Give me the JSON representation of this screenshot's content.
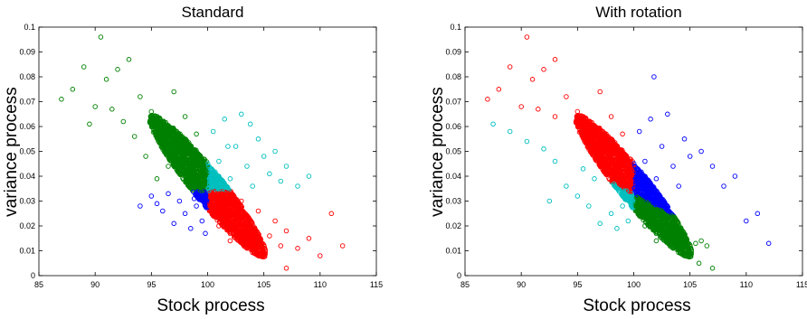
{
  "colors": {
    "green": "#008000",
    "cyan": "#00bfbf",
    "blue": "#0000ff",
    "red": "#ff0000"
  },
  "chart_data": [
    {
      "type": "scatter",
      "title": "Standard",
      "xlabel": "Stock process",
      "ylabel": "variance process",
      "xlim": [
        85,
        115
      ],
      "ylim": [
        0,
        0.1
      ],
      "xticks": [
        "85",
        "90",
        "95",
        "100",
        "105",
        "110",
        "115"
      ],
      "yticks": [
        "0",
        "0.01",
        "0.02",
        "0.03",
        "0.04",
        "0.05",
        "0.06",
        "0.07",
        "0.08",
        "0.09",
        "0.1"
      ],
      "marker": "open-circle",
      "grid": false,
      "partition": "quadrants split at S=100 and v=0.034",
      "series": [
        {
          "color": "#008000",
          "region": "S<100, v>0.034",
          "points": [
            [
              87,
              0.071
            ],
            [
              88,
              0.075
            ],
            [
              89,
              0.084
            ],
            [
              90.5,
              0.096
            ],
            [
              90,
              0.068
            ],
            [
              91,
              0.079
            ],
            [
              92,
              0.083
            ],
            [
              92.5,
              0.062
            ],
            [
              93,
              0.087
            ],
            [
              93.5,
              0.056
            ],
            [
              94,
              0.072
            ],
            [
              94.5,
              0.048
            ],
            [
              95,
              0.066
            ],
            [
              95.5,
              0.039
            ],
            [
              96,
              0.058
            ],
            [
              96.5,
              0.044
            ],
            [
              97,
              0.074
            ],
            [
              97.5,
              0.052
            ],
            [
              98,
              0.064
            ],
            [
              98.5,
              0.041
            ],
            [
              99,
              0.057
            ],
            [
              99.5,
              0.047
            ],
            [
              89.5,
              0.061
            ],
            [
              91.5,
              0.067
            ]
          ]
        },
        {
          "color": "#00bfbf",
          "region": "S>100, v>0.034",
          "points": [
            [
              100.5,
              0.058
            ],
            [
              101,
              0.046
            ],
            [
              101.5,
              0.063
            ],
            [
              102,
              0.039
            ],
            [
              102.5,
              0.052
            ],
            [
              103,
              0.065
            ],
            [
              103.5,
              0.044
            ],
            [
              104,
              0.036
            ],
            [
              104.5,
              0.055
            ],
            [
              105,
              0.048
            ],
            [
              105.5,
              0.041
            ],
            [
              106,
              0.05
            ],
            [
              106.5,
              0.038
            ],
            [
              107,
              0.044
            ],
            [
              108,
              0.036
            ],
            [
              109,
              0.04
            ],
            [
              103.8,
              0.061
            ],
            [
              101.8,
              0.052
            ]
          ]
        },
        {
          "color": "#0000ff",
          "region": "S<100, v<0.034",
          "points": [
            [
              94,
              0.028
            ],
            [
              95,
              0.032
            ],
            [
              96,
              0.026
            ],
            [
              97,
              0.021
            ],
            [
              97.5,
              0.03
            ],
            [
              98,
              0.025
            ],
            [
              98.5,
              0.019
            ],
            [
              99,
              0.028
            ],
            [
              99.5,
              0.022
            ],
            [
              96.5,
              0.033
            ],
            [
              95.5,
              0.029
            ],
            [
              98.8,
              0.031
            ],
            [
              99.8,
              0.017
            ]
          ]
        },
        {
          "color": "#ff0000",
          "region": "S>100, v<0.034",
          "points": [
            [
              100.5,
              0.031
            ],
            [
              101,
              0.02
            ],
            [
              101.5,
              0.027
            ],
            [
              102,
              0.014
            ],
            [
              102.5,
              0.024
            ],
            [
              103,
              0.03
            ],
            [
              103.5,
              0.011
            ],
            [
              104,
              0.019
            ],
            [
              104.5,
              0.026
            ],
            [
              105,
              0.009
            ],
            [
              105.5,
              0.016
            ],
            [
              106,
              0.022
            ],
            [
              106.5,
              0.012
            ],
            [
              107,
              0.018
            ],
            [
              108,
              0.011
            ],
            [
              109,
              0.015
            ],
            [
              110,
              0.008
            ],
            [
              111,
              0.025
            ],
            [
              112,
              0.012
            ],
            [
              107,
              0.003
            ]
          ]
        }
      ]
    },
    {
      "type": "scatter",
      "title": "With rotation",
      "xlabel": "Stock process",
      "ylabel": "variance process",
      "xlim": [
        85,
        115
      ],
      "ylim": [
        0,
        0.1
      ],
      "xticks": [
        "85",
        "90",
        "95",
        "100",
        "105",
        "110",
        "115"
      ],
      "yticks": [
        "0",
        "0.01",
        "0.02",
        "0.03",
        "0.04",
        "0.05",
        "0.06",
        "0.07",
        "0.08",
        "0.09",
        "0.1"
      ],
      "marker": "open-circle",
      "grid": false,
      "partition": "rotated quadrants: vertical split at S=100 and diagonal boundary from (87,0.065) to (108,0.013)",
      "series": [
        {
          "color": "#ff0000",
          "region": "S<100, above diagonal",
          "points": [
            [
              87,
              0.071
            ],
            [
              88,
              0.075
            ],
            [
              89,
              0.084
            ],
            [
              90.5,
              0.096
            ],
            [
              90,
              0.068
            ],
            [
              91,
              0.079
            ],
            [
              92,
              0.083
            ],
            [
              93,
              0.087
            ],
            [
              93,
              0.064
            ],
            [
              94,
              0.072
            ],
            [
              95,
              0.066
            ],
            [
              96,
              0.058
            ],
            [
              97,
              0.074
            ],
            [
              97.5,
              0.052
            ],
            [
              98,
              0.064
            ],
            [
              98.5,
              0.045
            ],
            [
              99,
              0.057
            ],
            [
              99.5,
              0.041
            ],
            [
              91.5,
              0.067
            ]
          ]
        },
        {
          "color": "#00bfbf",
          "region": "S<100, below diagonal",
          "points": [
            [
              87.5,
              0.061
            ],
            [
              89,
              0.058
            ],
            [
              90.5,
              0.054
            ],
            [
              92,
              0.051
            ],
            [
              93,
              0.046
            ],
            [
              94,
              0.036
            ],
            [
              95,
              0.032
            ],
            [
              96,
              0.028
            ],
            [
              96.5,
              0.039
            ],
            [
              97,
              0.021
            ],
            [
              98,
              0.025
            ],
            [
              98.5,
              0.019
            ],
            [
              99,
              0.028
            ],
            [
              99.5,
              0.022
            ],
            [
              92.5,
              0.03
            ],
            [
              95.5,
              0.043
            ]
          ]
        },
        {
          "color": "#0000ff",
          "region": "S>100, above diagonal",
          "points": [
            [
              100.5,
              0.058
            ],
            [
              101,
              0.046
            ],
            [
              101.5,
              0.063
            ],
            [
              102,
              0.039
            ],
            [
              102.5,
              0.052
            ],
            [
              103,
              0.065
            ],
            [
              103.5,
              0.044
            ],
            [
              104,
              0.036
            ],
            [
              104.5,
              0.055
            ],
            [
              105,
              0.048
            ],
            [
              106,
              0.05
            ],
            [
              107,
              0.044
            ],
            [
              108,
              0.036
            ],
            [
              109,
              0.04
            ],
            [
              110,
              0.022
            ],
            [
              111,
              0.025
            ],
            [
              112,
              0.013
            ],
            [
              101.8,
              0.08
            ]
          ]
        },
        {
          "color": "#008000",
          "region": "S>100, below diagonal",
          "points": [
            [
              100.5,
              0.031
            ],
            [
              101,
              0.02
            ],
            [
              101.5,
              0.027
            ],
            [
              102,
              0.014
            ],
            [
              102.5,
              0.024
            ],
            [
              103,
              0.02
            ],
            [
              103.5,
              0.011
            ],
            [
              104,
              0.019
            ],
            [
              104.5,
              0.016
            ],
            [
              105,
              0.009
            ],
            [
              105.5,
              0.013
            ],
            [
              106,
              0.014
            ],
            [
              106.5,
              0.012
            ],
            [
              107,
              0.003
            ],
            [
              105.8,
              0.005
            ]
          ]
        }
      ]
    }
  ]
}
